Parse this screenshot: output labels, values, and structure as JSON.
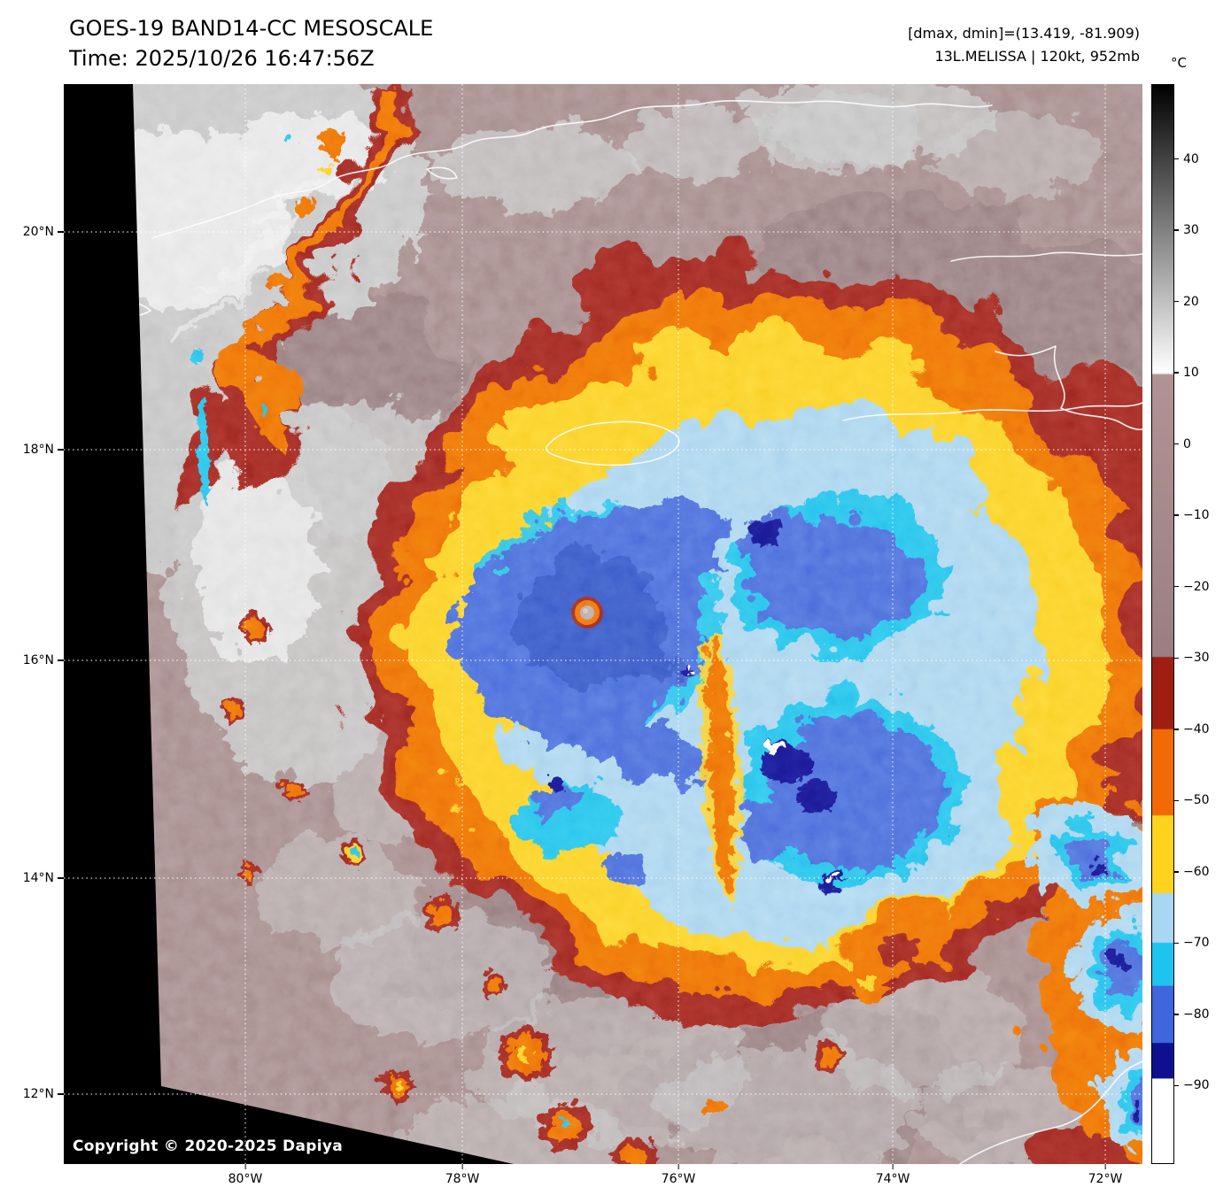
{
  "header": {
    "title": "GOES-19 BAND14-CC MESOSCALE",
    "time": "Time: 2025/10/26 16:47:56Z",
    "range": "[dmax, dmin]=(13.419, -81.909)",
    "storm": "13L.MELISSA | 120kt, 952mb"
  },
  "colorbar": {
    "unit": "°C",
    "ticks": [
      {
        "label": "40",
        "pct": 6.93
      },
      {
        "label": "30",
        "pct": 13.53
      },
      {
        "label": "20",
        "pct": 20.13
      },
      {
        "label": "10",
        "pct": 26.73
      },
      {
        "label": "0",
        "pct": 33.33
      },
      {
        "label": "−10",
        "pct": 39.93
      },
      {
        "label": "−20",
        "pct": 46.53
      },
      {
        "label": "−30",
        "pct": 53.14
      },
      {
        "label": "−40",
        "pct": 59.74
      },
      {
        "label": "−50",
        "pct": 66.34
      },
      {
        "label": "−60",
        "pct": 72.94
      },
      {
        "label": "−70",
        "pct": 79.54
      },
      {
        "label": "−80",
        "pct": 86.14
      },
      {
        "label": "−90",
        "pct": 92.74
      }
    ],
    "stops": [
      {
        "pct": 0,
        "color": "#000000"
      },
      {
        "pct": 26.7,
        "color": "#ffffff"
      },
      {
        "pct": 26.9,
        "color": "#b29394"
      },
      {
        "pct": 53.0,
        "color": "#9b7f80"
      },
      {
        "pct": 53.1,
        "color": "#9e1f12"
      },
      {
        "pct": 59.7,
        "color": "#9e1f12"
      },
      {
        "pct": 59.8,
        "color": "#f26a06"
      },
      {
        "pct": 67.7,
        "color": "#f26a06"
      },
      {
        "pct": 67.8,
        "color": "#ffd21d"
      },
      {
        "pct": 74.9,
        "color": "#ffd21d"
      },
      {
        "pct": 75.0,
        "color": "#a9d6f2"
      },
      {
        "pct": 79.5,
        "color": "#a9d6f2"
      },
      {
        "pct": 79.6,
        "color": "#1fc3ef"
      },
      {
        "pct": 83.5,
        "color": "#1fc3ef"
      },
      {
        "pct": 83.6,
        "color": "#3f66dd"
      },
      {
        "pct": 88.8,
        "color": "#3f66dd"
      },
      {
        "pct": 88.9,
        "color": "#0d1190"
      },
      {
        "pct": 92.1,
        "color": "#0d1190"
      },
      {
        "pct": 92.2,
        "color": "#ffffff"
      },
      {
        "pct": 100,
        "color": "#ffffff"
      }
    ]
  },
  "axes": {
    "lat": [
      {
        "label": "20°N",
        "pct": 13.69
      },
      {
        "label": "18°N",
        "pct": 33.85
      },
      {
        "label": "16°N",
        "pct": 53.36
      },
      {
        "label": "14°N",
        "pct": 73.52
      },
      {
        "label": "12°N",
        "pct": 93.52
      }
    ],
    "lon": [
      {
        "label": "80°W",
        "pct": 16.83
      },
      {
        "label": "78°W",
        "pct": 36.95
      },
      {
        "label": "76°W",
        "pct": 56.98
      },
      {
        "label": "74°W",
        "pct": 76.85
      },
      {
        "label": "72°W",
        "pct": 96.55
      }
    ]
  },
  "footer": {
    "copyright": "Copyright © 2020-2025 Dapiya"
  },
  "palette": {
    "mauve": "#a38889",
    "mauve_dark": "#8a6f73",
    "gray": "#c7c7c7",
    "gray_light": "#e9e9e9",
    "darkred": "#9e1f12",
    "orange": "#f26a06",
    "yellow": "#ffd21d",
    "skyblue": "#a9d6f2",
    "cyan": "#1fc3ef",
    "royal": "#3f66dd",
    "royal_dark": "#2c4ec4",
    "navy": "#0d1190"
  }
}
